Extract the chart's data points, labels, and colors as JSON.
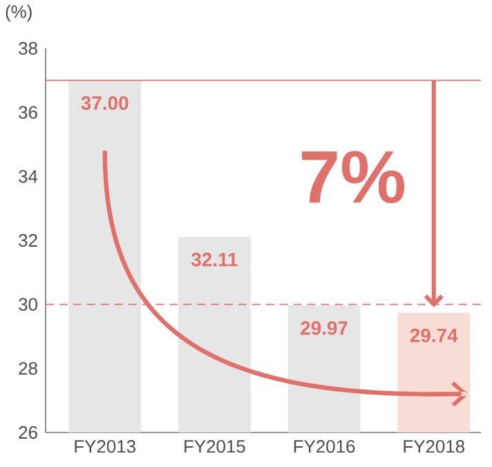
{
  "chart_data": {
    "type": "bar",
    "ylabel": "(%)",
    "categories": [
      "FY2013",
      "FY2015",
      "FY2016",
      "FY2018"
    ],
    "values": [
      37.0,
      32.11,
      29.97,
      29.74
    ],
    "value_labels": [
      "37.00",
      "32.11",
      "29.97",
      "29.74"
    ],
    "colors": [
      "#e6e6e6",
      "#e6e6e6",
      "#e6e6e6",
      "#f8dcd6"
    ],
    "ylim": [
      26,
      38
    ],
    "yticks": [
      26,
      28,
      30,
      32,
      34,
      36,
      38
    ],
    "ref_lines": [
      {
        "axis": "y",
        "value": 37,
        "color": "#e0706a",
        "line_style": "solid"
      },
      {
        "axis": "y",
        "value": 30,
        "color": "#e0706a",
        "line_style": "dashed"
      }
    ],
    "annotations": [
      "7%"
    ]
  }
}
